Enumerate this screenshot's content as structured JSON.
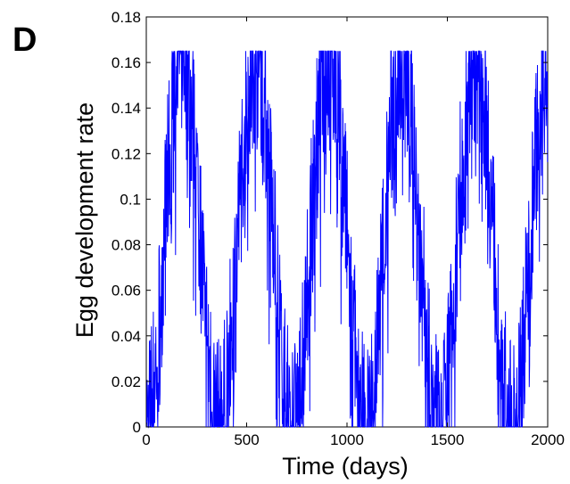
{
  "panel_label": "D",
  "chart_data": {
    "type": "line",
    "xlabel": "Time (days)",
    "ylabel": "Egg development rate",
    "xlim": [
      0,
      2000
    ],
    "ylim": [
      0,
      0.18
    ],
    "xticks": [
      0,
      500,
      1000,
      1500,
      2000
    ],
    "xtick_labels": [
      "0",
      "500",
      "1000",
      "1500",
      "2000"
    ],
    "yticks": [
      0,
      0.02,
      0.04,
      0.06,
      0.08,
      0.1,
      0.12,
      0.14,
      0.16,
      0.18
    ],
    "ytick_labels": [
      "0",
      "0.02",
      "0.04",
      "0.06",
      "0.08",
      "0.1",
      "0.12",
      "0.14",
      "0.16",
      "0.18"
    ],
    "grid": false,
    "series_color": "#0000ff",
    "series": [
      {
        "description": "noisy seasonal oscillation, period about 365 days",
        "envelope": {
          "period_days": 365,
          "peak_times": [
            180,
            545,
            910,
            1275,
            1640,
            1960
          ],
          "trough_times": [
            0,
            360,
            700,
            1000,
            1360,
            1720
          ],
          "max": 0.165,
          "min": 0.0
        }
      }
    ]
  }
}
